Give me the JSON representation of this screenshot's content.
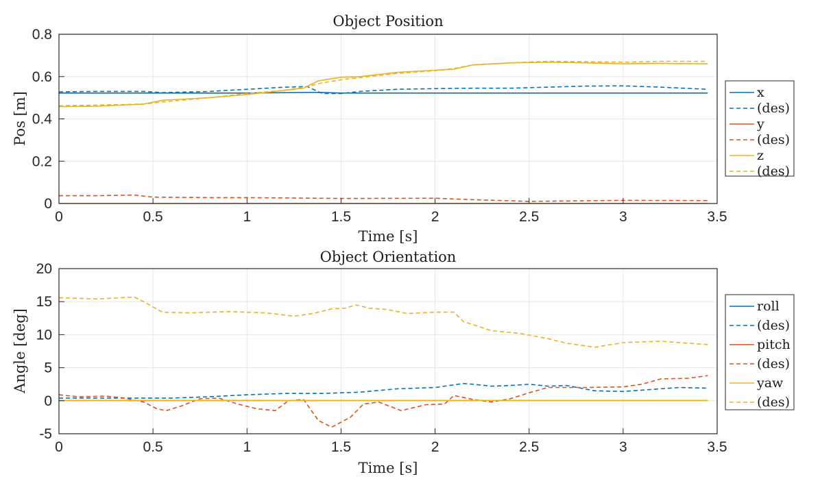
{
  "chart_data": [
    {
      "type": "line",
      "title": "Object Position",
      "xlabel": "Time [s]",
      "ylabel": "Pos [m]",
      "xlim": [
        0,
        3.5
      ],
      "ylim": [
        0,
        0.8
      ],
      "xticks": [
        0,
        0.5,
        1,
        1.5,
        2,
        2.5,
        3,
        3.5
      ],
      "xtick_labels": [
        "0",
        "0.5",
        "1",
        "1.5",
        "2",
        "2.5",
        "3",
        "3.5"
      ],
      "yticks": [
        0,
        0.2,
        0.4,
        0.6,
        0.8
      ],
      "ytick_labels": [
        "0",
        "0.2",
        "0.4",
        "0.6",
        "0.8"
      ],
      "grid": true,
      "legend_position": "outside-right",
      "series": [
        {
          "name": "x",
          "color": "#0072BD",
          "dash": false,
          "x": [
            0,
            1.0,
            1.33,
            1.4,
            1.5,
            2.0,
            2.5,
            3.0,
            3.45
          ],
          "y": [
            0.522,
            0.522,
            0.525,
            0.525,
            0.522,
            0.522,
            0.522,
            0.522,
            0.522
          ]
        },
        {
          "name": "(des)",
          "color": "#0072BD",
          "dash": true,
          "x": [
            0,
            0.2,
            0.45,
            0.55,
            0.8,
            1.0,
            1.2,
            1.32,
            1.4,
            1.5,
            1.6,
            1.8,
            2.0,
            2.2,
            2.4,
            2.6,
            2.8,
            3.0,
            3.2,
            3.45
          ],
          "y": [
            0.528,
            0.53,
            0.53,
            0.524,
            0.53,
            0.54,
            0.55,
            0.553,
            0.52,
            0.52,
            0.53,
            0.54,
            0.543,
            0.545,
            0.545,
            0.55,
            0.555,
            0.556,
            0.55,
            0.54
          ]
        },
        {
          "name": "y",
          "color": "#D95319",
          "dash": false,
          "x": [
            0,
            3.45
          ],
          "y": [
            0.0,
            0.0
          ]
        },
        {
          "name": "(des)",
          "color": "#D95319",
          "dash": true,
          "x": [
            0,
            0.2,
            0.4,
            0.5,
            0.8,
            1.0,
            1.5,
            2.0,
            2.2,
            2.5,
            3.0,
            3.45
          ],
          "y": [
            0.037,
            0.037,
            0.04,
            0.03,
            0.028,
            0.028,
            0.024,
            0.025,
            0.018,
            0.01,
            0.015,
            0.014
          ]
        },
        {
          "name": "z",
          "color": "#EDB120",
          "dash": false,
          "x": [
            0,
            0.2,
            0.45,
            0.55,
            0.8,
            1.0,
            1.2,
            1.3,
            1.38,
            1.5,
            1.6,
            1.8,
            2.0,
            2.1,
            2.2,
            2.4,
            2.6,
            2.8,
            3.0,
            3.2,
            3.45
          ],
          "y": [
            0.458,
            0.46,
            0.47,
            0.488,
            0.5,
            0.515,
            0.535,
            0.545,
            0.58,
            0.597,
            0.6,
            0.62,
            0.63,
            0.635,
            0.655,
            0.665,
            0.668,
            0.665,
            0.66,
            0.662,
            0.66
          ]
        },
        {
          "name": "(des)",
          "color": "#EDB120",
          "dash": true,
          "x": [
            0,
            0.2,
            0.45,
            0.55,
            0.8,
            1.0,
            1.2,
            1.3,
            1.4,
            1.5,
            1.6,
            1.8,
            2.0,
            2.1,
            2.2,
            2.4,
            2.6,
            2.8,
            3.0,
            3.2,
            3.45
          ],
          "y": [
            0.462,
            0.465,
            0.47,
            0.48,
            0.5,
            0.52,
            0.535,
            0.55,
            0.57,
            0.585,
            0.595,
            0.615,
            0.628,
            0.638,
            0.655,
            0.665,
            0.672,
            0.67,
            0.668,
            0.672,
            0.672
          ]
        }
      ]
    },
    {
      "type": "line",
      "title": "Object Orientation",
      "xlabel": "Time [s]",
      "ylabel": "Angle [deg]",
      "xlim": [
        0,
        3.5
      ],
      "ylim": [
        -5,
        20
      ],
      "xticks": [
        0,
        0.5,
        1,
        1.5,
        2,
        2.5,
        3,
        3.5
      ],
      "xtick_labels": [
        "0",
        "0.5",
        "1",
        "1.5",
        "2",
        "2.5",
        "3",
        "3.5"
      ],
      "yticks": [
        -5,
        0,
        5,
        10,
        15,
        20
      ],
      "ytick_labels": [
        "-5",
        "0",
        "5",
        "10",
        "15",
        "20"
      ],
      "grid": true,
      "legend_position": "outside-right",
      "series": [
        {
          "name": "roll",
          "color": "#0072BD",
          "dash": false,
          "x": [
            0,
            3.45
          ],
          "y": [
            0.05,
            0.05
          ]
        },
        {
          "name": "(des)",
          "color": "#0072BD",
          "dash": true,
          "x": [
            0,
            0.2,
            0.4,
            0.6,
            0.8,
            1.0,
            1.2,
            1.4,
            1.6,
            1.8,
            2.0,
            2.15,
            2.2,
            2.3,
            2.4,
            2.5,
            2.6,
            2.7,
            2.85,
            3.0,
            3.2,
            3.3,
            3.45
          ],
          "y": [
            0.4,
            0.4,
            0.4,
            0.4,
            0.6,
            0.9,
            1.1,
            1.1,
            1.3,
            1.8,
            2.0,
            2.6,
            2.5,
            2.2,
            2.3,
            2.5,
            2.2,
            2.3,
            1.5,
            1.4,
            1.8,
            2.0,
            1.9
          ]
        },
        {
          "name": "pitch",
          "color": "#D95319",
          "dash": false,
          "x": [
            0,
            3.45
          ],
          "y": [
            0.05,
            0.05
          ]
        },
        {
          "name": "(des)",
          "color": "#D95319",
          "dash": true,
          "x": [
            0,
            0.1,
            0.25,
            0.35,
            0.45,
            0.52,
            0.57,
            0.65,
            0.75,
            0.85,
            0.95,
            1.05,
            1.15,
            1.22,
            1.3,
            1.38,
            1.45,
            1.55,
            1.62,
            1.7,
            1.82,
            1.95,
            2.05,
            2.1,
            2.2,
            2.3,
            2.4,
            2.5,
            2.6,
            2.8,
            3.0,
            3.1,
            3.2,
            3.35,
            3.45
          ],
          "y": [
            0.9,
            0.6,
            0.7,
            0.4,
            -0.2,
            -1.2,
            -1.5,
            -0.8,
            0.3,
            0.4,
            -0.5,
            -1.2,
            -1.5,
            0.0,
            0.2,
            -3.0,
            -4.0,
            -2.5,
            -0.5,
            -0.2,
            -1.5,
            -0.6,
            -0.5,
            0.8,
            0.2,
            -0.2,
            0.3,
            1.2,
            2.0,
            2.0,
            2.1,
            2.5,
            3.3,
            3.4,
            3.8
          ]
        },
        {
          "name": "yaw",
          "color": "#EDB120",
          "dash": false,
          "x": [
            0,
            3.45
          ],
          "y": [
            0.05,
            0.05
          ]
        },
        {
          "name": "(des)",
          "color": "#EDB120",
          "dash": true,
          "x": [
            0,
            0.2,
            0.4,
            0.45,
            0.55,
            0.7,
            0.9,
            1.1,
            1.25,
            1.35,
            1.45,
            1.52,
            1.58,
            1.65,
            1.75,
            1.85,
            2.0,
            2.1,
            2.15,
            2.3,
            2.45,
            2.6,
            2.7,
            2.85,
            3.0,
            3.2,
            3.45
          ],
          "y": [
            15.6,
            15.4,
            15.7,
            15.0,
            13.4,
            13.3,
            13.5,
            13.3,
            12.8,
            13.2,
            13.9,
            14.0,
            14.5,
            14.0,
            13.8,
            13.2,
            13.4,
            13.4,
            12.0,
            10.6,
            10.2,
            9.4,
            8.7,
            8.1,
            8.8,
            9.0,
            8.5
          ]
        }
      ]
    }
  ]
}
